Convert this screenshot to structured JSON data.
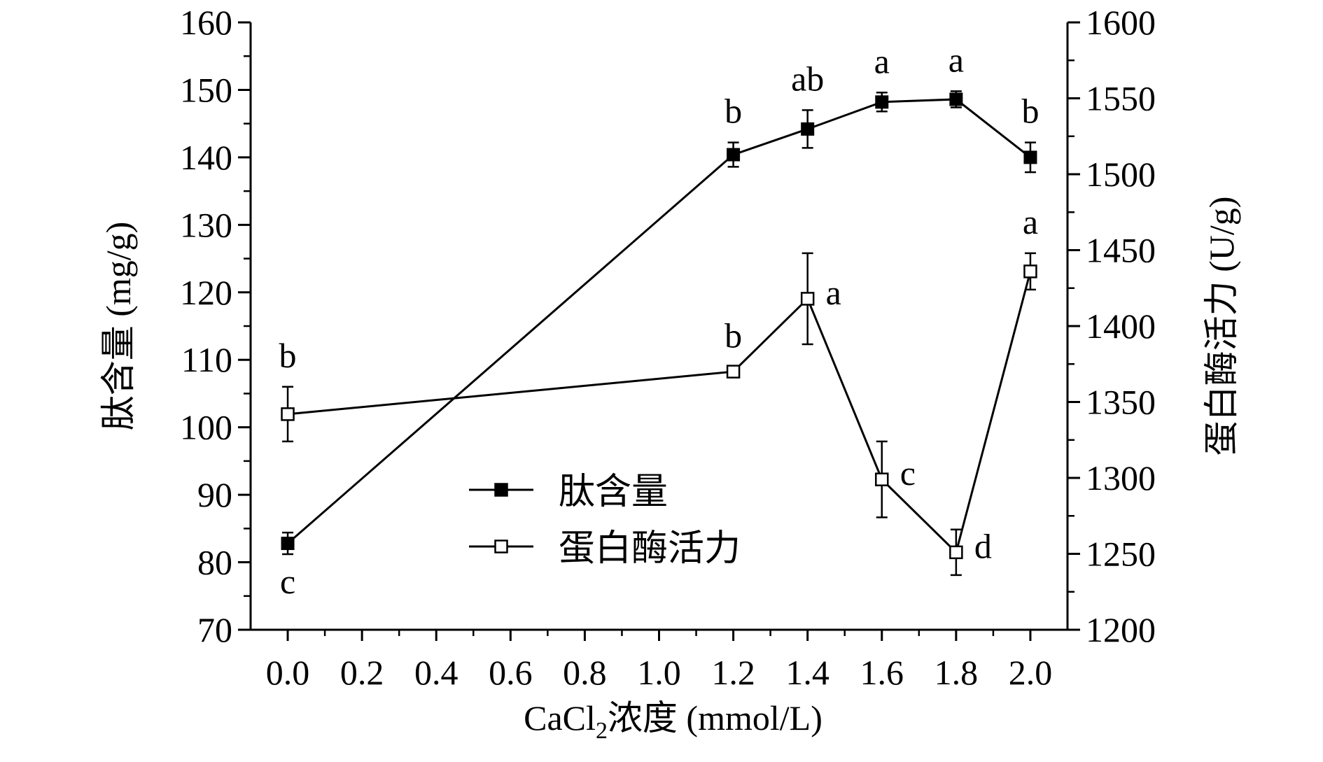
{
  "chart_data": {
    "type": "line",
    "x": [
      0.0,
      1.2,
      1.4,
      1.6,
      1.8,
      2.0
    ],
    "xlim": [
      -0.1,
      2.1
    ],
    "x_ticks": [
      "0.0",
      "0.2",
      "0.4",
      "0.6",
      "0.8",
      "1.0",
      "1.2",
      "1.4",
      "1.6",
      "1.8",
      "2.0"
    ],
    "xlabel_prefix": "CaCl",
    "xlabel_sub": "2",
    "xlabel_suffix": "浓度 (mmol/L)",
    "ylabel_left": "肽含量 (mg/g)",
    "ylim_left": [
      70,
      160
    ],
    "y_ticks_left": [
      "70",
      "80",
      "90",
      "100",
      "110",
      "120",
      "130",
      "140",
      "150",
      "160"
    ],
    "ylabel_right": "蛋白酶活力 (U/g)",
    "ylim_right": [
      1200,
      1600
    ],
    "y_ticks_right": [
      "1200",
      "1250",
      "1300",
      "1350",
      "1400",
      "1450",
      "1500",
      "1550",
      "1600"
    ],
    "grid": false,
    "legend_position": "lower-center",
    "series": [
      {
        "name": "肽含量",
        "axis": "left",
        "marker": "filled-square",
        "values": [
          82.8,
          140.4,
          144.2,
          148.2,
          148.6,
          140.0
        ],
        "errors": [
          1.6,
          1.8,
          2.8,
          1.4,
          1.2,
          2.2
        ],
        "labels": [
          "c",
          "b",
          "ab",
          "a",
          "a",
          "b"
        ]
      },
      {
        "name": "蛋白酶活力",
        "axis": "right",
        "marker": "open-square",
        "values": [
          1342,
          1370,
          1418,
          1299,
          1251,
          1436
        ],
        "errors": [
          18,
          3,
          30,
          25,
          15,
          12
        ],
        "labels": [
          "b",
          "b",
          "a",
          "c",
          "d",
          "a"
        ]
      }
    ]
  }
}
